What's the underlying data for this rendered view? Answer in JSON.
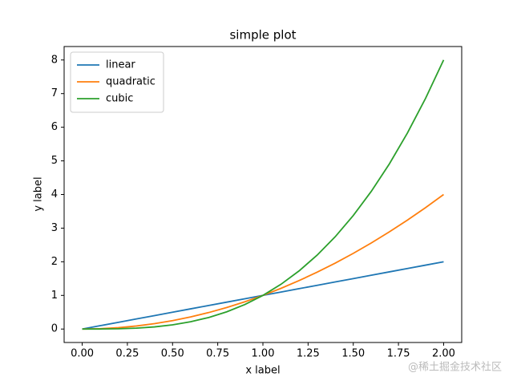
{
  "chart_data": {
    "type": "line",
    "title": "simple plot",
    "xlabel": "x label",
    "ylabel": "y label",
    "x": [
      0,
      0.1,
      0.2,
      0.3,
      0.4,
      0.5,
      0.6,
      0.7,
      0.8,
      0.9,
      1,
      1.1,
      1.2,
      1.3,
      1.4,
      1.5,
      1.6,
      1.7,
      1.8,
      1.9,
      2
    ],
    "series": [
      {
        "name": "linear",
        "color": "#1f77b4",
        "values": [
          0,
          0.1,
          0.2,
          0.3,
          0.4,
          0.5,
          0.6,
          0.7,
          0.8,
          0.9,
          1,
          1.1,
          1.2,
          1.3,
          1.4,
          1.5,
          1.6,
          1.7,
          1.8,
          1.9,
          2
        ]
      },
      {
        "name": "quadratic",
        "color": "#ff7f0e",
        "values": [
          0,
          0.01,
          0.04,
          0.09,
          0.16,
          0.25,
          0.36,
          0.49,
          0.64,
          0.81,
          1,
          1.21,
          1.44,
          1.69,
          1.96,
          2.25,
          2.56,
          2.89,
          3.24,
          3.61,
          4
        ]
      },
      {
        "name": "cubic",
        "color": "#2ca02c",
        "values": [
          0,
          0.001,
          0.008,
          0.027,
          0.064,
          0.125,
          0.216,
          0.343,
          0.512,
          0.729,
          1,
          1.331,
          1.728,
          2.197,
          2.744,
          3.375,
          4.096,
          4.913,
          5.832,
          6.859,
          8
        ]
      }
    ],
    "xlim": [
      -0.1,
      2.1
    ],
    "ylim": [
      -0.4,
      8.4
    ],
    "xticks": [
      {
        "value": 0,
        "label": "0.00"
      },
      {
        "value": 0.25,
        "label": "0.25"
      },
      {
        "value": 0.5,
        "label": "0.50"
      },
      {
        "value": 0.75,
        "label": "0.75"
      },
      {
        "value": 1,
        "label": "1.00"
      },
      {
        "value": 1.25,
        "label": "1.25"
      },
      {
        "value": 1.5,
        "label": "1.50"
      },
      {
        "value": 1.75,
        "label": "1.75"
      },
      {
        "value": 2,
        "label": "2.00"
      }
    ],
    "yticks": [
      0,
      1,
      2,
      3,
      4,
      5,
      6,
      7,
      8
    ],
    "legend": "upper left",
    "grid": false,
    "watermark": "@稀土掘金技术社区"
  }
}
